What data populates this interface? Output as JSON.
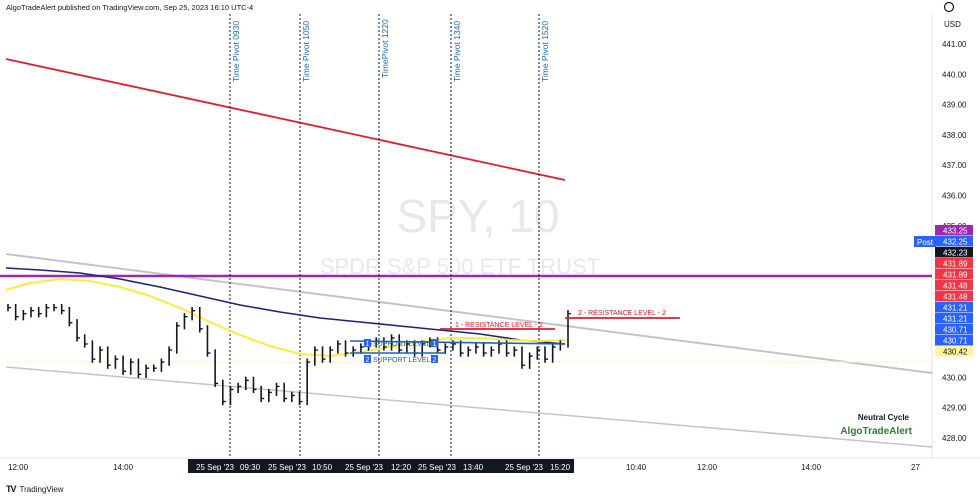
{
  "header": {
    "published": "AlgoTradeAlert published on TradingView.com, Sep 25, 2023 16:10 UTC-4"
  },
  "footer": {
    "logo_icon": "tradingview-logo-icon",
    "brand": "TradingView"
  },
  "watermark": {
    "symbol": "SPY, 10",
    "name": "SPDR S&P 500 ETF TRUST"
  },
  "price_axis": {
    "currency": "USD",
    "ticks": [
      "441.00",
      "440.00",
      "439.00",
      "438.00",
      "437.00",
      "436.00",
      "435.00",
      "430.00",
      "429.00",
      "428.00"
    ],
    "post_label": "Post",
    "badges": [
      {
        "value": "433.25",
        "color": "#9c27b0"
      },
      {
        "value": "432.25",
        "color": "#2962ff"
      },
      {
        "value": "432.23",
        "color": "#131722"
      },
      {
        "value": "431.89",
        "color": "#f23645"
      },
      {
        "value": "431.89",
        "color": "#f23645"
      },
      {
        "value": "431.48",
        "color": "#f23645"
      },
      {
        "value": "431.48",
        "color": "#f23645"
      },
      {
        "value": "431.21",
        "color": "#2962ff"
      },
      {
        "value": "431.21",
        "color": "#2962ff"
      },
      {
        "value": "430.71",
        "color": "#2962ff"
      },
      {
        "value": "430.71",
        "color": "#2962ff"
      },
      {
        "value": "430.42",
        "color": "#fff59d"
      }
    ],
    "settings_icon": "gear-icon"
  },
  "time_axis": {
    "labels": [
      "12:00",
      "14:00",
      "10:40",
      "12:00",
      "14:00",
      "27"
    ],
    "highlighted": [
      "25 Sep '23",
      "09:30",
      "25 Sep '23",
      "10:50",
      "25 Sep '23",
      "12:20",
      "25 Sep '23",
      "13:40",
      "25 Sep '23",
      "15:20"
    ]
  },
  "annotations": {
    "time_pivots": [
      "Time Pivot 0930",
      "Time Pivot 1050",
      "TimePivot 1220",
      "Time Pivot 1340",
      "Time Pivot 1520"
    ],
    "resistance_1": "1 - RESISTANCE LEVEL - 1",
    "resistance_2": "2 - RESISTANCE LEVEL - 2",
    "support_1_num": "1",
    "support_1": "SUPPORT LEVEL",
    "support_1_num_end": "1",
    "support_2_num": "2",
    "support_2": "SUPPORT LEVEL",
    "support_2_num_end": "2",
    "cycle": "Neutral Cycle",
    "brand": "AlgoTradeAlert"
  },
  "chart_data": {
    "type": "candlestick",
    "symbol": "SPY",
    "interval": "10",
    "y_unit": "USD",
    "ylim": [
      427.6,
      441.5
    ],
    "x_labels_visible": [
      "12:00",
      "14:00",
      "25 Sep '23 09:30",
      "25 Sep '23 10:50",
      "25 Sep '23 12:20",
      "25 Sep '23 13:40",
      "25 Sep '23 15:20",
      "10:40",
      "12:00",
      "14:00",
      "27"
    ],
    "candles_close": [
      432.3,
      432.0,
      432.1,
      432.2,
      432.1,
      432.3,
      432.3,
      432.2,
      431.8,
      431.3,
      431.1,
      430.6,
      430.9,
      430.4,
      430.6,
      430.2,
      430.5,
      430.1,
      430.3,
      430.3,
      430.5,
      430.9,
      431.7,
      432.0,
      432.2,
      431.6,
      430.8,
      429.8,
      429.2,
      429.6,
      429.7,
      429.9,
      429.6,
      429.3,
      429.5,
      429.7,
      429.3,
      429.4,
      429.2,
      430.5,
      430.9,
      430.6,
      430.9,
      431.1,
      430.8,
      430.9,
      431.0,
      431.1,
      431.2,
      431.0,
      431.3,
      430.9,
      431.1,
      430.8,
      431.1,
      431.2,
      430.9,
      431.0,
      431.1,
      430.8,
      430.9,
      431.0,
      430.8,
      430.9,
      431.1,
      430.8,
      430.9,
      430.4,
      430.7,
      430.9,
      430.6,
      431.0,
      431.1,
      432.1
    ],
    "series": [
      {
        "name": "downtrend line",
        "color": "#e8192c",
        "start": 440.7,
        "end": 436.5
      },
      {
        "name": "purple level",
        "color": "#9c27b0",
        "value": 431.89
      },
      {
        "name": "moving average slow",
        "color": "#1a237e"
      },
      {
        "name": "moving average fast",
        "color": "#ffeb3b"
      }
    ],
    "resistance_levels": [
      431.48,
      431.48
    ],
    "support_levels": [
      430.71,
      430.71
    ]
  }
}
